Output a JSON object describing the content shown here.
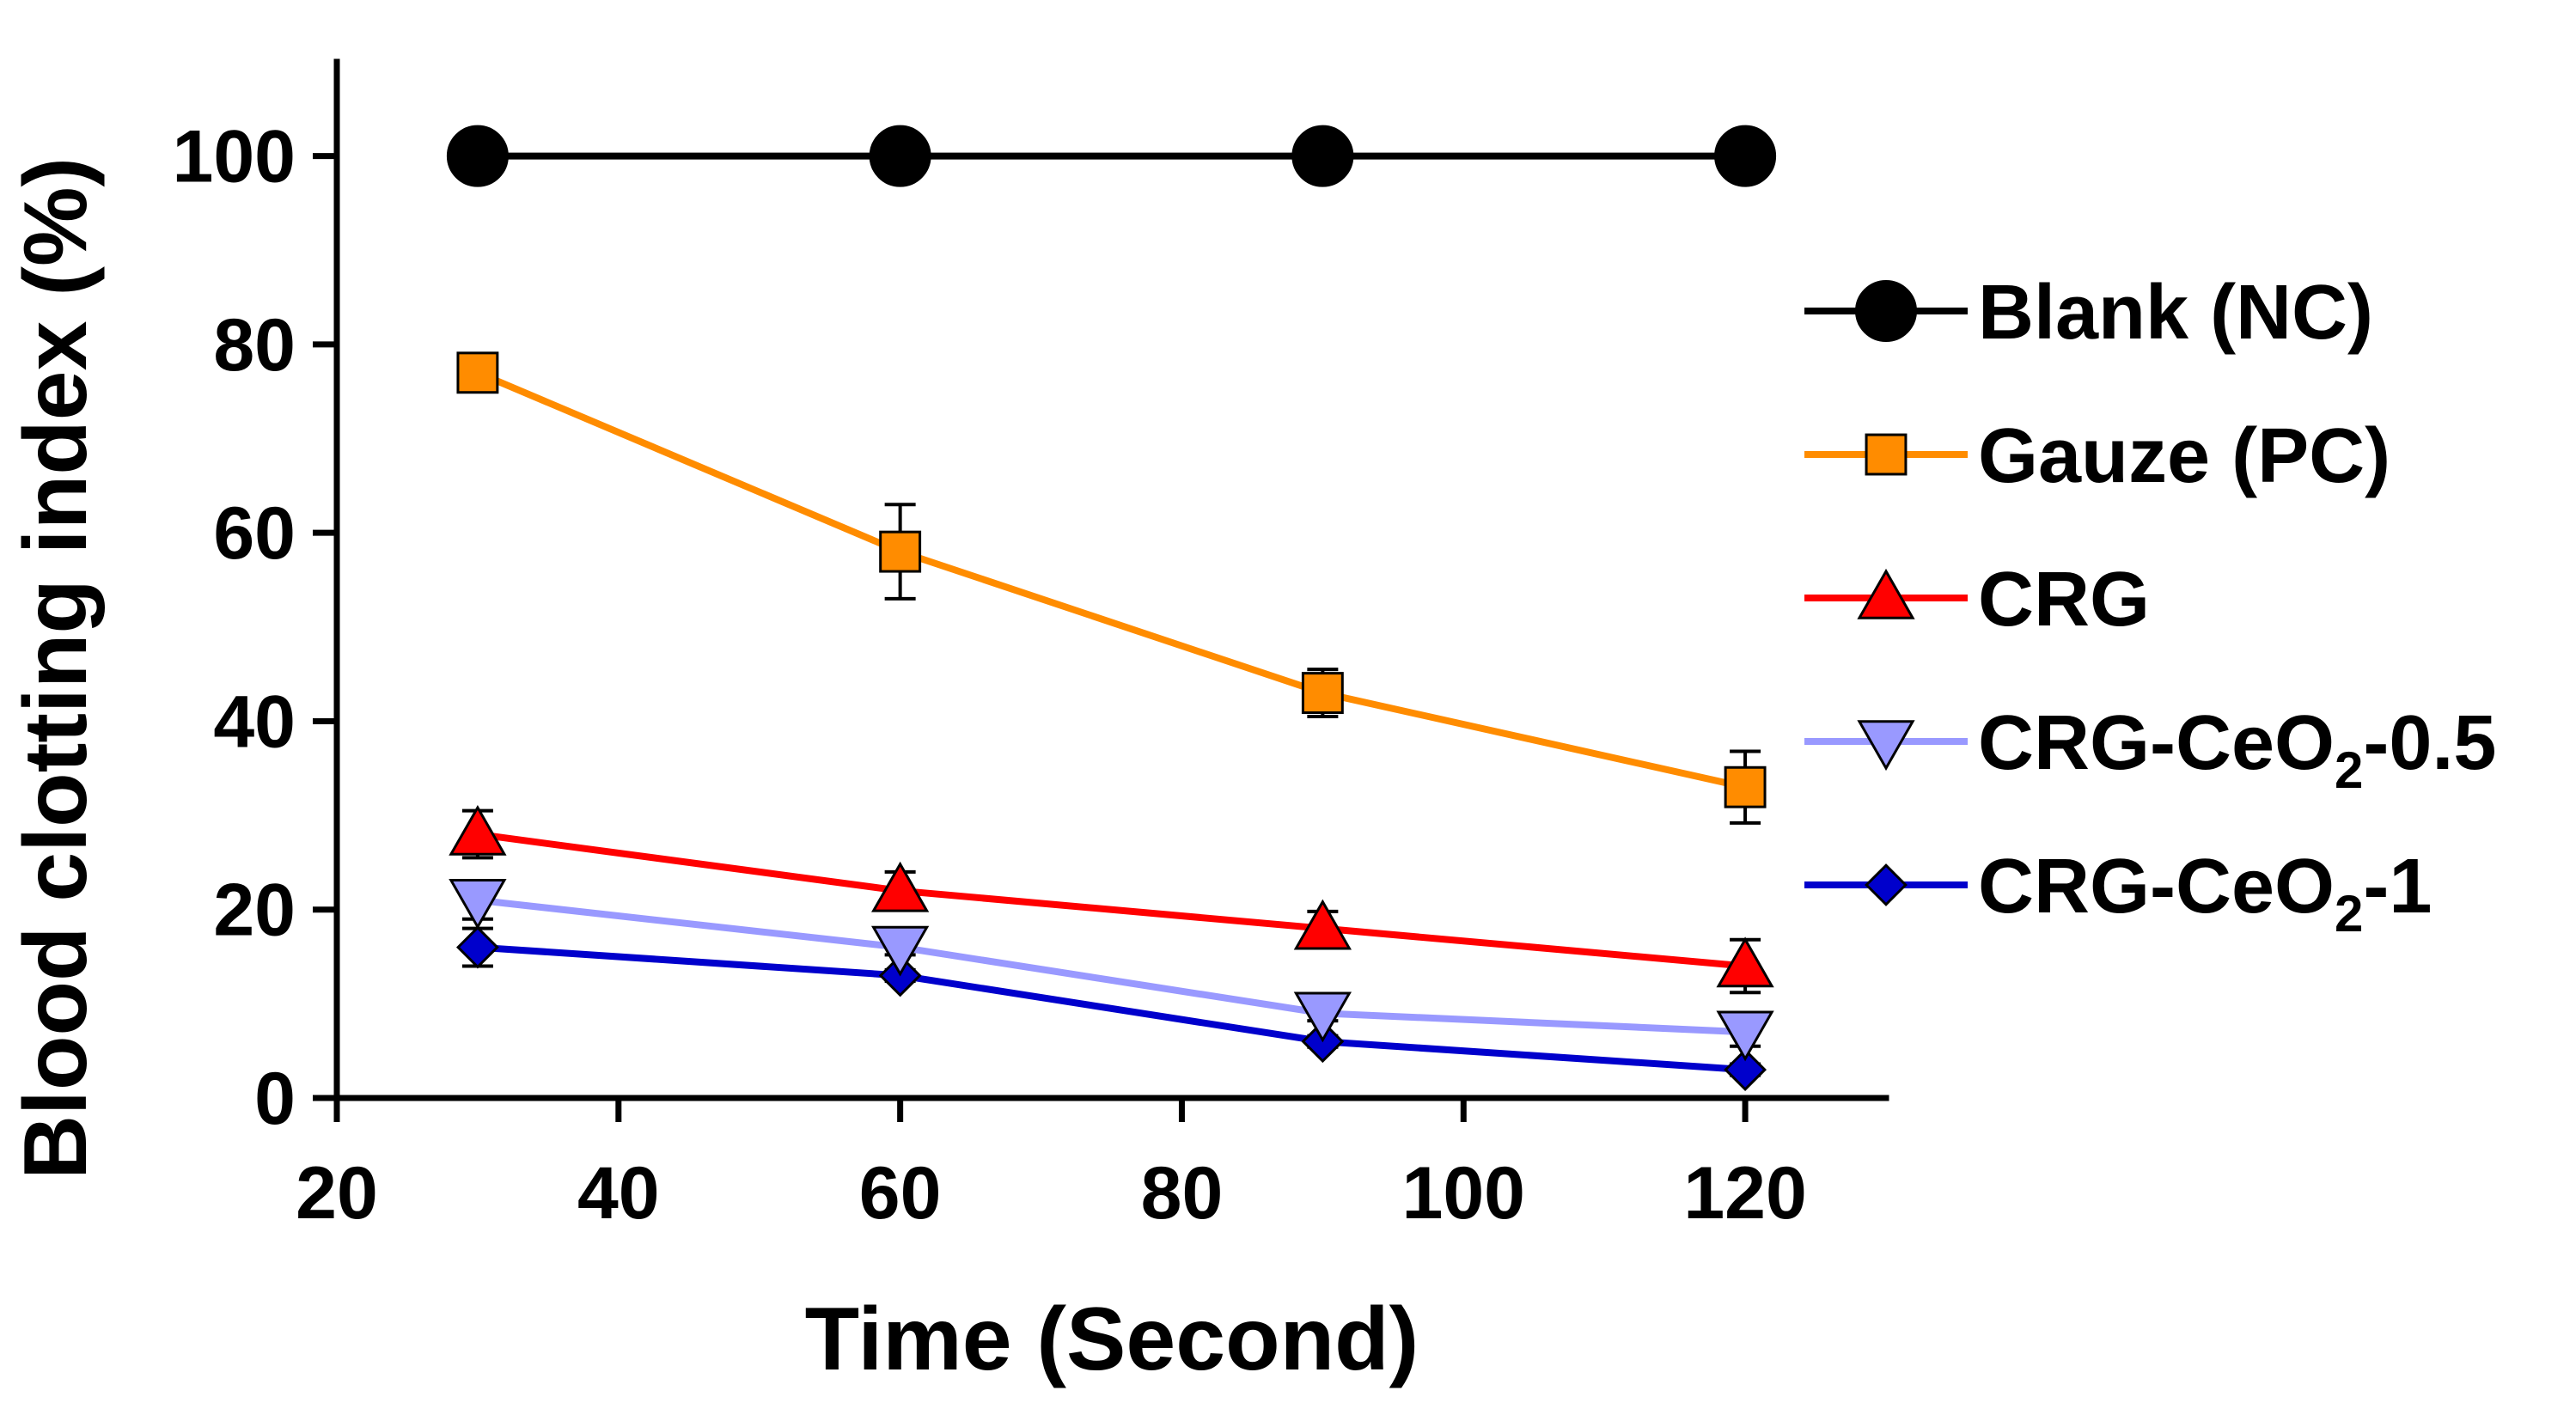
{
  "chart_data": {
    "type": "line",
    "title": "",
    "xlabel": "Time (Second)",
    "ylabel": "Blood clotting index (%)",
    "xlim": [
      20,
      130
    ],
    "ylim": [
      0,
      110
    ],
    "xticks": [
      20,
      40,
      60,
      80,
      100,
      120
    ],
    "yticks": [
      0,
      20,
      40,
      60,
      80,
      100
    ],
    "x": [
      30,
      60,
      90,
      120
    ],
    "legend_position": "right",
    "series": [
      {
        "name": "Blank (NC)",
        "legend_main": "Blank (NC)",
        "legend_sub": "",
        "legend_tail": "",
        "color": "#000000",
        "fill": "#000000",
        "marker": "circle",
        "values": [
          100,
          100,
          100,
          100
        ],
        "errors": [
          0,
          0,
          0,
          0
        ]
      },
      {
        "name": "Gauze (PC)",
        "legend_main": "Gauze (PC)",
        "legend_sub": "",
        "legend_tail": "",
        "color": "#FF8C00",
        "fill": "#FF8C00",
        "marker": "square",
        "values": [
          77,
          58,
          43,
          33
        ],
        "errors": [
          1.5,
          5,
          2.5,
          3.8
        ]
      },
      {
        "name": "CRG",
        "legend_main": "CRG",
        "legend_sub": "",
        "legend_tail": "",
        "color": "#FF0000",
        "fill": "#FF0000",
        "marker": "triangle-up",
        "values": [
          28,
          22,
          18,
          14
        ],
        "errors": [
          2.5,
          2,
          1.8,
          2.8
        ]
      },
      {
        "name": "CRG-CeO2-0.5",
        "legend_main": "CRG-CeO",
        "legend_sub": "2",
        "legend_tail": "-0.5",
        "color": "#9999FF",
        "fill": "#9999FF",
        "marker": "triangle-down",
        "values": [
          21,
          16,
          9,
          7
        ],
        "errors": [
          2,
          0.8,
          0.8,
          1.5
        ]
      },
      {
        "name": "CRG-CeO2-1",
        "legend_main": "CRG-CeO",
        "legend_sub": "2",
        "legend_tail": "-1",
        "color": "#0000CC",
        "fill": "#0000CC",
        "marker": "diamond",
        "values": [
          16,
          13,
          6,
          3
        ],
        "errors": [
          2,
          0.6,
          0.6,
          0.6
        ]
      }
    ]
  }
}
